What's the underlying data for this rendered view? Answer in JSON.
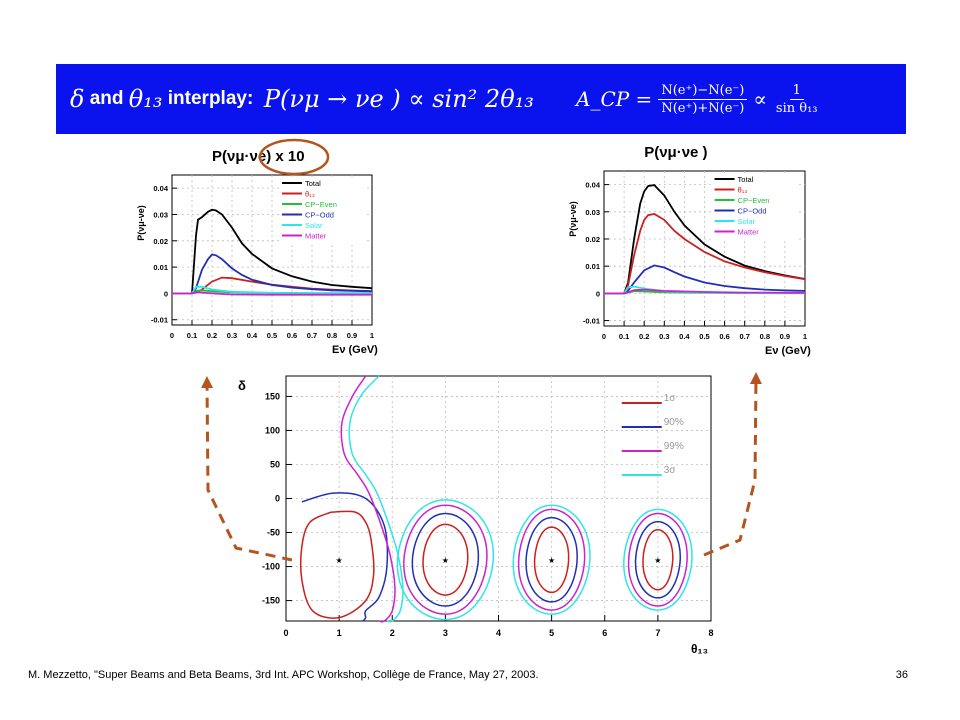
{
  "banner": {
    "title_delta": "δ",
    "title_and": "and",
    "title_theta": "θ₁₃",
    "title_interplay": "interplay:",
    "prob_expr": "P(νμ → νe ) ∝ sin² 2θ₁₃",
    "acp_lhs": "A_CP =",
    "acp_num": "N(e⁺)−N(e⁻)",
    "acp_den": "N(e⁺)+N(e⁻)",
    "acp_prop": "∝",
    "acp_rhs_num": "1",
    "acp_rhs_den": "sin θ₁₃"
  },
  "footer": {
    "citation": "M. Mezzetto, \"Super Beams and Beta Beams, 3rd Int. APC Workshop, Collège de France, May 27, 2003.",
    "page_number": "36"
  },
  "colors": {
    "banner": "#0a12ee",
    "total": "#000000",
    "theta13": "#cc1f1f",
    "cp_even": "#22c03a",
    "cp_odd": "#1f2fb8",
    "solar": "#2ee6e6",
    "matter": "#cc22cc",
    "arrow": "#b4541f"
  },
  "chart_data": [
    {
      "type": "line",
      "title": "P(νμ·νe) x 10",
      "annotation": "circled: x 10",
      "xlabel": "Eν (GeV)",
      "ylabel": "P(νμ-νe)",
      "xlim": [
        0,
        1
      ],
      "ylim": [
        -0.012,
        0.045
      ],
      "x_ticks": [
        "0",
        "0.1",
        "0.2",
        "0.3",
        "0.4",
        "0.5",
        "0.6",
        "0.7",
        "0.8",
        "0.9",
        "1"
      ],
      "y_ticks": [
        "-0.01",
        "0",
        "0.01",
        "0.02",
        "0.03",
        "0.04"
      ],
      "grid": true,
      "legend": "top-right",
      "series": [
        {
          "name": "Total",
          "color": "#000000",
          "x": [
            0.0,
            0.1,
            0.12,
            0.13,
            0.15,
            0.18,
            0.2,
            0.22,
            0.25,
            0.3,
            0.35,
            0.4,
            0.5,
            0.6,
            0.7,
            0.8,
            0.9,
            1.0
          ],
          "y": [
            0,
            0,
            0.022,
            0.028,
            0.029,
            0.031,
            0.0318,
            0.0315,
            0.03,
            0.025,
            0.019,
            0.015,
            0.0095,
            0.0065,
            0.0045,
            0.0032,
            0.0025,
            0.002
          ]
        },
        {
          "name": "θ₁₃",
          "color": "#cc1f1f",
          "x": [
            0.0,
            0.1,
            0.12,
            0.15,
            0.2,
            0.25,
            0.3,
            0.4,
            0.5,
            0.6,
            0.7,
            0.8,
            0.9,
            1.0
          ],
          "y": [
            0,
            0,
            0.0003,
            0.0015,
            0.0045,
            0.006,
            0.0058,
            0.0045,
            0.0033,
            0.0025,
            0.0018,
            0.0014,
            0.0011,
            0.0009
          ]
        },
        {
          "name": "CP−Even",
          "color": "#22c03a",
          "x": [
            0.0,
            0.1,
            0.12,
            0.15,
            0.2,
            0.3,
            0.5,
            0.7,
            1.0
          ],
          "y": [
            0,
            0,
            0.001,
            0.0012,
            0.0008,
            0.0004,
            0.0002,
            0.0001,
            0.0001
          ]
        },
        {
          "name": "CP−Odd",
          "color": "#1f2fb8",
          "x": [
            0.0,
            0.1,
            0.12,
            0.15,
            0.18,
            0.2,
            0.22,
            0.25,
            0.3,
            0.35,
            0.4,
            0.5,
            0.6,
            0.7,
            0.8,
            0.9,
            1.0
          ],
          "y": [
            0,
            0,
            0.002,
            0.009,
            0.013,
            0.0148,
            0.0145,
            0.013,
            0.0095,
            0.007,
            0.0052,
            0.0032,
            0.0022,
            0.0016,
            0.0012,
            0.001,
            0.0008
          ]
        },
        {
          "name": "Solar",
          "color": "#2ee6e6",
          "x": [
            0.0,
            0.1,
            0.12,
            0.15,
            0.2,
            0.3,
            0.5,
            0.7,
            1.0
          ],
          "y": [
            0,
            0,
            0.0025,
            0.0025,
            0.0015,
            0.0006,
            0.0002,
            0.0001,
            0.0
          ]
        },
        {
          "name": "Matter",
          "color": "#cc22cc",
          "x": [
            0.0,
            0.1,
            0.12,
            0.15,
            0.2,
            0.3,
            0.5,
            0.7,
            1.0
          ],
          "y": [
            0,
            0,
            0.0005,
            0.0003,
            0.0,
            -0.0004,
            -0.0005,
            -0.0005,
            -0.0005
          ]
        }
      ]
    },
    {
      "type": "line",
      "title": "P(νμ·νe )",
      "xlabel": "Eν (GeV)",
      "ylabel": "P(νμ-νe)",
      "xlim": [
        0,
        1
      ],
      "ylim": [
        -0.012,
        0.045
      ],
      "x_ticks": [
        "0",
        "0.1",
        "0.2",
        "0.3",
        "0.4",
        "0.5",
        "0.6",
        "0.7",
        "0.8",
        "0.9",
        "1"
      ],
      "y_ticks": [
        "-0.01",
        "0",
        "0.01",
        "0.02",
        "0.03",
        "0.04"
      ],
      "grid": true,
      "legend": "top-right",
      "series": [
        {
          "name": "Total",
          "color": "#000000",
          "x": [
            0.0,
            0.1,
            0.12,
            0.15,
            0.18,
            0.2,
            0.22,
            0.25,
            0.3,
            0.35,
            0.4,
            0.5,
            0.6,
            0.7,
            0.8,
            0.9,
            1.0
          ],
          "y": [
            0,
            0,
            0.004,
            0.02,
            0.033,
            0.0375,
            0.0395,
            0.0398,
            0.036,
            0.03,
            0.025,
            0.018,
            0.0135,
            0.0102,
            0.0082,
            0.0066,
            0.0053
          ]
        },
        {
          "name": "θ₁₃",
          "color": "#cc1f1f",
          "x": [
            0.0,
            0.1,
            0.12,
            0.15,
            0.18,
            0.2,
            0.22,
            0.25,
            0.3,
            0.35,
            0.4,
            0.5,
            0.6,
            0.7,
            0.8,
            0.9,
            1.0
          ],
          "y": [
            0,
            0,
            0.003,
            0.014,
            0.023,
            0.027,
            0.0288,
            0.0292,
            0.027,
            0.023,
            0.02,
            0.0152,
            0.0118,
            0.0095,
            0.0078,
            0.0064,
            0.0052
          ]
        },
        {
          "name": "CP−Even",
          "color": "#22c03a",
          "x": [
            0.0,
            0.1,
            0.12,
            0.15,
            0.2,
            0.3,
            0.5,
            0.7,
            1.0
          ],
          "y": [
            0,
            0,
            0.0003,
            0.0008,
            0.0007,
            0.0004,
            0.0002,
            0.0001,
            0.0001
          ]
        },
        {
          "name": "CP−Odd",
          "color": "#1f2fb8",
          "x": [
            0.0,
            0.1,
            0.12,
            0.15,
            0.2,
            0.25,
            0.3,
            0.35,
            0.4,
            0.5,
            0.6,
            0.7,
            0.8,
            0.9,
            1.0
          ],
          "y": [
            0,
            0,
            0.001,
            0.004,
            0.0085,
            0.0103,
            0.0095,
            0.0078,
            0.0062,
            0.004,
            0.0027,
            0.0019,
            0.0014,
            0.0011,
            0.0009
          ]
        },
        {
          "name": "Solar",
          "color": "#2ee6e6",
          "x": [
            0.0,
            0.1,
            0.12,
            0.15,
            0.2,
            0.3,
            0.5,
            0.7,
            1.0
          ],
          "y": [
            0,
            0,
            0.0022,
            0.0025,
            0.0018,
            0.0008,
            0.0003,
            0.0001,
            0.0
          ]
        },
        {
          "name": "Matter",
          "color": "#cc22cc",
          "x": [
            0.0,
            0.1,
            0.12,
            0.15,
            0.2,
            0.3,
            0.5,
            0.7,
            1.0
          ],
          "y": [
            0,
            0,
            0.0004,
            0.0012,
            0.0014,
            0.0009,
            0.0005,
            0.0003,
            0.0002
          ]
        }
      ]
    },
    {
      "type": "line",
      "subtype": "contour",
      "xlabel": "θ₁₃",
      "ylabel": "δ",
      "xlim": [
        0,
        8
      ],
      "ylim": [
        -180,
        180
      ],
      "x_ticks": [
        "0",
        "1",
        "2",
        "3",
        "4",
        "5",
        "6",
        "7",
        "8"
      ],
      "y_ticks": [
        "-150",
        "-100",
        "-50",
        "0",
        "50",
        "100",
        "150"
      ],
      "grid": true,
      "legend": "top-right",
      "legend_entries": [
        {
          "label": "1σ",
          "color": "#cc1f1f"
        },
        {
          "label": "90%",
          "color": "#1f2fb8"
        },
        {
          "label": "99%",
          "color": "#cc22cc"
        },
        {
          "label": "3σ",
          "color": "#2ee6e6"
        }
      ],
      "best_fit_points": [
        {
          "x": 1,
          "y": -90
        },
        {
          "x": 3,
          "y": -90
        },
        {
          "x": 5,
          "y": -90
        },
        {
          "x": 7,
          "y": -90
        }
      ],
      "islands": [
        {
          "cx": 3,
          "cy": -90,
          "rx": [
            0.42,
            0.62,
            0.78,
            0.9
          ],
          "ry": [
            52,
            68,
            80,
            88
          ]
        },
        {
          "cx": 5,
          "cy": -90,
          "rx": [
            0.32,
            0.48,
            0.62,
            0.72
          ],
          "ry": [
            48,
            62,
            74,
            80
          ]
        },
        {
          "cx": 7,
          "cy": -90,
          "rx": [
            0.28,
            0.42,
            0.55,
            0.64
          ],
          "ry": [
            44,
            56,
            68,
            74
          ]
        }
      ],
      "series": [
        {
          "name": "1σ",
          "color": "#cc1f1f",
          "x": [
            0.85,
            0.45,
            0.3,
            0.3,
            0.5,
            1.0,
            1.5,
            1.65,
            1.6,
            1.5,
            1.3,
            0.85
          ],
          "y": [
            -20,
            -35,
            -70,
            -120,
            -165,
            -175,
            -150,
            -110,
            -60,
            -35,
            -20,
            -20
          ]
        },
        {
          "name": "90%",
          "color": "#1f2fb8",
          "x": [
            0.3,
            0.9,
            1.5,
            1.85,
            1.9,
            1.75,
            1.5,
            1.5,
            1.45
          ],
          "y": [
            -5,
            8,
            0,
            -40,
            -100,
            -145,
            -165,
            -175,
            -180
          ]
        },
        {
          "name": "99%",
          "color": "#cc22cc",
          "x": [
            1.5,
            1.25,
            1.05,
            1.1,
            1.35,
            1.55,
            1.75,
            1.95,
            2.05,
            2.0,
            1.85,
            1.75
          ],
          "y": [
            180,
            150,
            110,
            65,
            35,
            10,
            -30,
            -80,
            -130,
            -165,
            -180,
            -180
          ]
        },
        {
          "name": "3σ",
          "color": "#2ee6e6",
          "x": [
            1.75,
            1.4,
            1.2,
            1.25,
            1.5,
            1.7,
            1.9,
            2.1,
            2.2,
            2.15,
            2.0,
            1.9
          ],
          "y": [
            180,
            150,
            110,
            65,
            35,
            10,
            -30,
            -80,
            -130,
            -165,
            -180,
            -180
          ]
        }
      ]
    }
  ]
}
